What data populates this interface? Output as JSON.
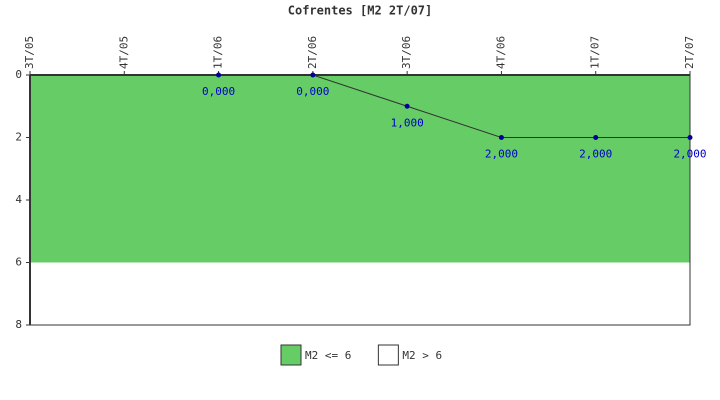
{
  "chart_data": {
    "type": "line",
    "title": "Cofrentes [M2 2T/07]",
    "categories": [
      "3T/05",
      "4T/05",
      "1T/06",
      "2T/06",
      "3T/06",
      "4T/06",
      "1T/07",
      "2T/07"
    ],
    "series": [
      {
        "values": [
          null,
          null,
          0,
          0,
          1,
          2,
          2,
          2
        ],
        "value_labels": [
          null,
          null,
          "0,000",
          "0,000",
          "1,000",
          "2,000",
          "2,000",
          "2,000"
        ],
        "color": "#333333",
        "marker_color": "#000099"
      }
    ],
    "bands": [
      {
        "name": "M2 <= 6",
        "from": 0,
        "to": 6,
        "color": "#66cc66"
      },
      {
        "name": "M2 > 6",
        "from": 6,
        "to": 8,
        "color": "#ffffff"
      }
    ],
    "ylim": [
      0,
      8
    ],
    "yticks": [
      0,
      2,
      4,
      6,
      8
    ],
    "y_inverted": true,
    "x_axis_position": "top",
    "grid": false,
    "legend": "bottom"
  }
}
